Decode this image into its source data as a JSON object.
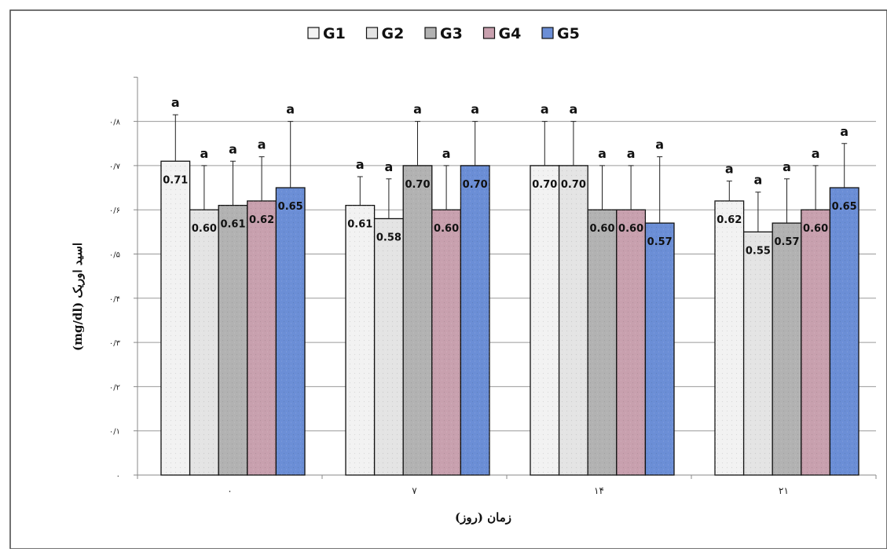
{
  "chart_data": {
    "type": "bar",
    "xlabel": "زمان (روز)",
    "ylabel": "اسید اوریک (mg/dl)",
    "categories": [
      "۰",
      "۷",
      "۱۴",
      "۲۱"
    ],
    "y_ticks": [
      "۰",
      "۰/۱",
      "۰/۲",
      "۰/۳",
      "۰/۴",
      "۰/۵",
      "۰/۶",
      "۰/۷",
      "۰/۸"
    ],
    "ylim": [
      0,
      0.9
    ],
    "legend_position": "top",
    "grid": true,
    "series": [
      {
        "name": "G1",
        "color": "#f2f2f2",
        "values": [
          0.71,
          0.61,
          0.7,
          0.62
        ],
        "error": [
          0.105,
          0.065,
          0.1,
          0.045
        ],
        "value_labels": [
          "0.71",
          "0.61",
          "0.70",
          "0.62"
        ],
        "significance": [
          "a",
          "a",
          "a",
          "a"
        ]
      },
      {
        "name": "G2",
        "color": "#e4e4e4",
        "values": [
          0.6,
          0.58,
          0.7,
          0.55
        ],
        "error": [
          0.1,
          0.09,
          0.1,
          0.09
        ],
        "value_labels": [
          "0.60",
          "0.58",
          "0.70",
          "0.55"
        ],
        "significance": [
          "a",
          "a",
          "a",
          "a"
        ]
      },
      {
        "name": "G3",
        "color": "#b2b2b2",
        "values": [
          0.61,
          0.7,
          0.6,
          0.57
        ],
        "error": [
          0.1,
          0.1,
          0.1,
          0.1
        ],
        "value_labels": [
          "0.61",
          "0.70",
          "0.60",
          "0.57"
        ],
        "significance": [
          "a",
          "a",
          "a",
          "a"
        ]
      },
      {
        "name": "G4",
        "color": "#c8a0ae",
        "values": [
          0.62,
          0.6,
          0.6,
          0.6
        ],
        "error": [
          0.1,
          0.1,
          0.1,
          0.1
        ],
        "value_labels": [
          "0.62",
          "0.60",
          "0.60",
          "0.60"
        ],
        "significance": [
          "a",
          "a",
          "a",
          "a"
        ]
      },
      {
        "name": "G5",
        "color": "#6b8ed6",
        "values": [
          0.65,
          0.7,
          0.57,
          0.65
        ],
        "error": [
          0.15,
          0.1,
          0.15,
          0.1
        ],
        "value_labels": [
          "0.65",
          "0.70",
          "0.57",
          "0.65"
        ],
        "significance": [
          "a",
          "a",
          "a",
          "a"
        ]
      }
    ]
  }
}
